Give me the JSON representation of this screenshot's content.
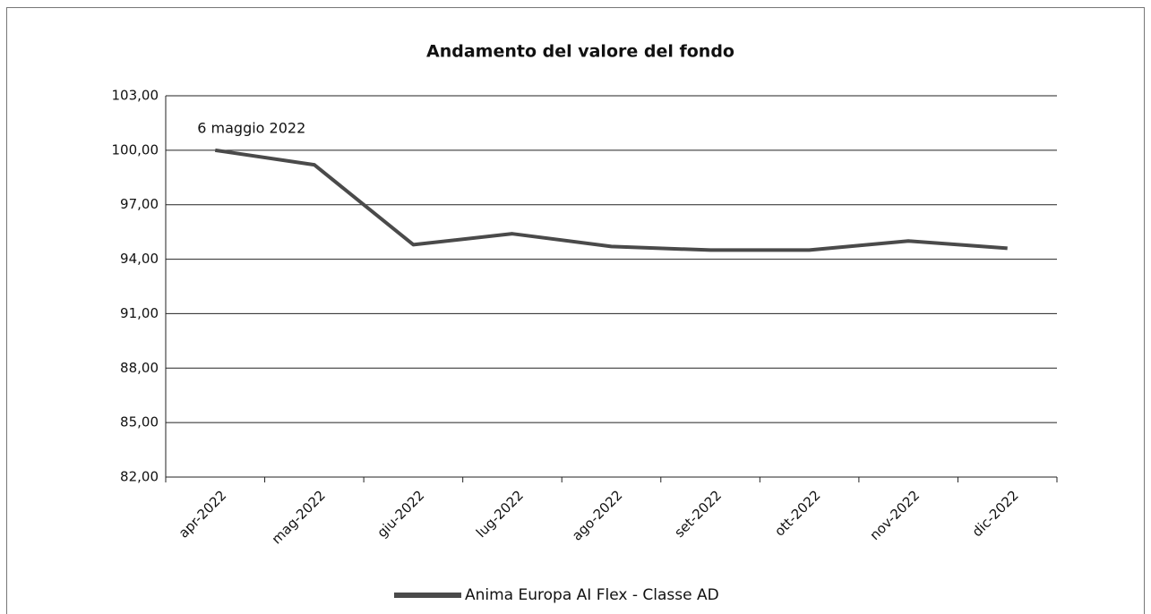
{
  "chart_data": {
    "type": "line",
    "title": "Andamento del valore del fondo",
    "annotation": "6 maggio 2022",
    "categories": [
      "apr-2022",
      "mag-2022",
      "giu-2022",
      "lug-2022",
      "ago-2022",
      "set-2022",
      "ott-2022",
      "nov-2022",
      "dic-2022"
    ],
    "series": [
      {
        "name": "Anima Europa AI Flex - Classe AD",
        "color": "#4a4a4a",
        "values": [
          100.0,
          99.2,
          94.8,
          95.4,
          94.7,
          94.5,
          94.5,
          95.0,
          94.6
        ]
      }
    ],
    "ylim": [
      82,
      103
    ],
    "yticks": [
      {
        "value": 82,
        "label": "82,00"
      },
      {
        "value": 85,
        "label": "85,00"
      },
      {
        "value": 88,
        "label": "88,00"
      },
      {
        "value": 91,
        "label": "91,00"
      },
      {
        "value": 94,
        "label": "94,00"
      },
      {
        "value": 97,
        "label": "97,00"
      },
      {
        "value": 100,
        "label": "100,00"
      },
      {
        "value": 103,
        "label": "103,00"
      }
    ],
    "grid": true,
    "legend": "bottom"
  }
}
